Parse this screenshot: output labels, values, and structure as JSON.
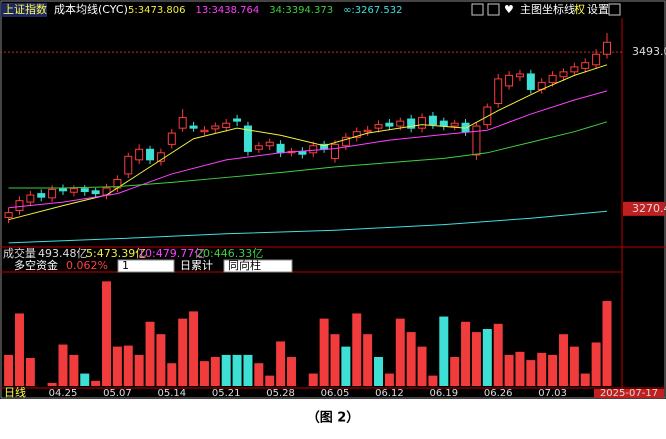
{
  "toolbar": {
    "index_name": "上证指数",
    "indicator": "成本均线(CYC)",
    "buttons": [
      "主图",
      "坐标线",
      "权",
      "设置"
    ]
  },
  "chart_data": [
    {
      "type": "candlestick",
      "categories": [
        null,
        null,
        null,
        null,
        null,
        "04.25",
        null,
        null,
        null,
        null,
        "05.07",
        null,
        null,
        null,
        null,
        "05.14",
        null,
        null,
        null,
        null,
        "05.21",
        null,
        null,
        null,
        null,
        "05.28",
        null,
        null,
        null,
        null,
        "06.05",
        null,
        null,
        null,
        null,
        "06.12",
        null,
        null,
        null,
        null,
        "06.19",
        null,
        null,
        null,
        null,
        "06.26",
        null,
        null,
        null,
        null,
        "07.03",
        null,
        null,
        null,
        null,
        "2025-07-17"
      ],
      "open": [
        3258,
        3268,
        3280,
        3292,
        3286,
        3299,
        3294,
        3299,
        3296,
        3290,
        3300,
        3320,
        3340,
        3355,
        3338,
        3362,
        3385,
        3388,
        3380,
        3384,
        3386,
        3398,
        3388,
        3355,
        3360,
        3362,
        3350,
        3352,
        3350,
        3362,
        3342,
        3360,
        3372,
        3380,
        3385,
        3392,
        3388,
        3398,
        3385,
        3402,
        3395,
        3388,
        3392,
        3347,
        3390,
        3420,
        3445,
        3458,
        3462,
        3440,
        3450,
        3458,
        3465,
        3470,
        3475,
        3490
      ],
      "high": [
        3272,
        3288,
        3296,
        3298,
        3304,
        3305,
        3304,
        3304,
        3300,
        3306,
        3318,
        3350,
        3362,
        3360,
        3356,
        3384,
        3412,
        3394,
        3388,
        3393,
        3398,
        3404,
        3394,
        3365,
        3370,
        3368,
        3357,
        3358,
        3366,
        3367,
        3368,
        3378,
        3386,
        3388,
        3396,
        3398,
        3400,
        3404,
        3406,
        3408,
        3400,
        3397,
        3398,
        3394,
        3420,
        3462,
        3466,
        3468,
        3468,
        3456,
        3466,
        3470,
        3478,
        3484,
        3497,
        3520
      ],
      "low": [
        3250,
        3262,
        3274,
        3281,
        3280,
        3290,
        3288,
        3289,
        3286,
        3284,
        3294,
        3314,
        3334,
        3334,
        3332,
        3356,
        3380,
        3380,
        3375,
        3378,
        3380,
        3388,
        3346,
        3350,
        3354,
        3344,
        3345,
        3342,
        3344,
        3350,
        3336,
        3354,
        3366,
        3374,
        3379,
        3382,
        3382,
        3379,
        3379,
        3384,
        3382,
        3382,
        3374,
        3340,
        3384,
        3414,
        3440,
        3452,
        3434,
        3434,
        3444,
        3452,
        3459,
        3464,
        3469,
        3484
      ],
      "close": [
        3265,
        3282,
        3290,
        3287,
        3298,
        3296,
        3299,
        3295,
        3292,
        3300,
        3312,
        3345,
        3355,
        3340,
        3350,
        3378,
        3400,
        3385,
        3382,
        3388,
        3392,
        3395,
        3352,
        3360,
        3365,
        3350,
        3352,
        3348,
        3360,
        3355,
        3362,
        3372,
        3380,
        3382,
        3390,
        3388,
        3395,
        3385,
        3400,
        3390,
        3388,
        3392,
        3380,
        3388,
        3415,
        3455,
        3460,
        3462,
        3440,
        3450,
        3460,
        3465,
        3472,
        3478,
        3490,
        3507
      ],
      "up_color": "#ff3c3c",
      "down_color": "#3ee0d6",
      "ylim": [
        3217.6,
        3541.5
      ],
      "yticks": [
        {
          "value": 3493,
          "label": "3493.0"
        },
        3270.4
      ],
      "lines": [
        {
          "name": "5:3473.806",
          "color": "#f0f040",
          "x": [
            0,
            5,
            9,
            13,
            17,
            21,
            25,
            29,
            33,
            38,
            42,
            45,
            49,
            52,
            55
          ],
          "values": [
            3255,
            3275,
            3290,
            3330,
            3370,
            3385,
            3375,
            3360,
            3378,
            3390,
            3385,
            3410,
            3440,
            3460,
            3475
          ]
        },
        {
          "name": "13:3438.764",
          "color": "#ff40ff",
          "x": [
            0,
            5,
            10,
            15,
            20,
            25,
            30,
            35,
            40,
            44,
            48,
            52,
            55
          ],
          "values": [
            3272,
            3280,
            3292,
            3320,
            3340,
            3350,
            3356,
            3368,
            3376,
            3382,
            3405,
            3425,
            3438
          ]
        },
        {
          "name": "34:3394.373",
          "color": "#40d040",
          "x": [
            0,
            5,
            10,
            15,
            20,
            25,
            30,
            35,
            40,
            44,
            48,
            52,
            55
          ],
          "values": [
            3300,
            3300,
            3302,
            3308,
            3315,
            3322,
            3330,
            3336,
            3342,
            3350,
            3365,
            3380,
            3394
          ]
        },
        {
          "name": "∞:3267.532",
          "color": "#40e0e0",
          "x": [
            0,
            10,
            20,
            30,
            40,
            48,
            55
          ],
          "values": [
            3222,
            3228,
            3235,
            3240,
            3248,
            3257,
            3267
          ]
        }
      ]
    },
    {
      "type": "bar",
      "title": "多空资金",
      "value_text": "0.062%",
      "period": "1",
      "mode": "日累计",
      "style": "同向柱",
      "values": [
        30,
        70,
        27,
        0,
        3,
        40,
        30,
        12,
        5,
        101,
        38,
        39,
        30,
        62,
        50,
        22,
        65,
        72,
        24,
        28,
        30,
        30,
        30,
        22,
        10,
        43,
        28,
        0,
        12,
        65,
        50,
        38,
        70,
        50,
        28,
        12,
        65,
        52,
        38,
        10,
        67,
        28,
        62,
        52,
        55,
        60,
        30,
        33,
        25,
        32,
        30,
        50,
        38,
        12,
        42,
        82
      ],
      "colors": [
        "#f03c3c",
        "#f03c3c",
        "#f03c3c",
        "#f03c3c",
        "#f03c3c",
        "#f03c3c",
        "#f03c3c",
        "#3ee0d6",
        "#f03c3c",
        "#f03c3c",
        "#f03c3c",
        "#f03c3c",
        "#f03c3c",
        "#f03c3c",
        "#f03c3c",
        "#f03c3c",
        "#f03c3c",
        "#f03c3c",
        "#f03c3c",
        "#f03c3c",
        "#3ee0d6",
        "#3ee0d6",
        "#3ee0d6",
        "#f03c3c",
        "#f03c3c",
        "#f03c3c",
        "#f03c3c",
        "#f03c3c",
        "#f03c3c",
        "#f03c3c",
        "#f03c3c",
        "#3ee0d6",
        "#f03c3c",
        "#f03c3c",
        "#3ee0d6",
        "#f03c3c",
        "#f03c3c",
        "#f03c3c",
        "#f03c3c",
        "#f03c3c",
        "#3ee0d6",
        "#f03c3c",
        "#f03c3c",
        "#f03c3c",
        "#3ee0d6",
        "#f03c3c",
        "#f03c3c",
        "#f03c3c",
        "#f03c3c",
        "#f03c3c",
        "#f03c3c",
        "#f03c3c",
        "#f03c3c",
        "#f03c3c",
        "#f03c3c",
        "#f03c3c"
      ],
      "ylim": [
        0,
        110
      ]
    }
  ],
  "volume_header": {
    "label": "成交量",
    "total": "493.48亿",
    "ma": [
      "5:473.39亿",
      "10:479.77亿",
      "20:446.33亿"
    ]
  },
  "bottom_label": "日线",
  "caption": "（图 2）"
}
